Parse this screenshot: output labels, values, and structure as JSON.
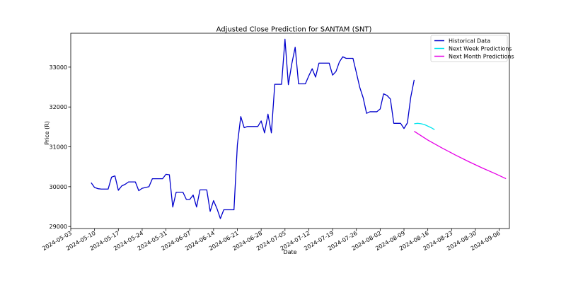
{
  "chart_data": {
    "type": "line",
    "title": "Adjusted Close Prediction for SANTAM (SNT)",
    "xlabel": "Date",
    "ylabel": "Price (R)",
    "xlim": [
      "2024-05-03",
      "2024-09-09"
    ],
    "ylim": [
      28950,
      33850
    ],
    "grid": false,
    "legend_position": "top-right",
    "x_ticks": [
      "2024-05-03",
      "2024-05-10",
      "2024-05-17",
      "2024-05-24",
      "2024-05-31",
      "2024-06-07",
      "2024-06-14",
      "2024-06-21",
      "2024-06-28",
      "2024-07-05",
      "2024-07-12",
      "2024-07-19",
      "2024-07-26",
      "2024-08-02",
      "2024-08-09",
      "2024-08-16",
      "2024-08-23",
      "2024-08-30",
      "2024-09-06"
    ],
    "y_ticks": [
      29000,
      30000,
      31000,
      32000,
      33000
    ],
    "series": [
      {
        "name": "Historical Data",
        "color": "#0000cc",
        "points": [
          [
            "2024-05-09",
            30100
          ],
          [
            "2024-05-10",
            29980
          ],
          [
            "2024-05-11",
            29950
          ],
          [
            "2024-05-12",
            29940
          ],
          [
            "2024-05-14",
            29940
          ],
          [
            "2024-05-15",
            30240
          ],
          [
            "2024-05-16",
            30270
          ],
          [
            "2024-05-17",
            29910
          ],
          [
            "2024-05-18",
            30020
          ],
          [
            "2024-05-19",
            30060
          ],
          [
            "2024-05-20",
            30120
          ],
          [
            "2024-05-22",
            30120
          ],
          [
            "2024-05-23",
            29900
          ],
          [
            "2024-05-24",
            29960
          ],
          [
            "2024-05-26",
            30000
          ],
          [
            "2024-05-27",
            30200
          ],
          [
            "2024-05-30",
            30200
          ],
          [
            "2024-05-31",
            30310
          ],
          [
            "2024-06-01",
            30300
          ],
          [
            "2024-06-02",
            29490
          ],
          [
            "2024-06-03",
            29860
          ],
          [
            "2024-06-05",
            29860
          ],
          [
            "2024-06-06",
            29680
          ],
          [
            "2024-06-07",
            29680
          ],
          [
            "2024-06-08",
            29790
          ],
          [
            "2024-06-09",
            29490
          ],
          [
            "2024-06-10",
            29920
          ],
          [
            "2024-06-12",
            29920
          ],
          [
            "2024-06-13",
            29380
          ],
          [
            "2024-06-14",
            29650
          ],
          [
            "2024-06-15",
            29450
          ],
          [
            "2024-06-16",
            29200
          ],
          [
            "2024-06-17",
            29420
          ],
          [
            "2024-06-20",
            29420
          ],
          [
            "2024-06-21",
            31050
          ],
          [
            "2024-06-22",
            31760
          ],
          [
            "2024-06-23",
            31480
          ],
          [
            "2024-06-24",
            31510
          ],
          [
            "2024-06-27",
            31510
          ],
          [
            "2024-06-28",
            31650
          ],
          [
            "2024-06-29",
            31350
          ],
          [
            "2024-06-30",
            31820
          ],
          [
            "2024-07-01",
            31350
          ],
          [
            "2024-07-02",
            32570
          ],
          [
            "2024-07-04",
            32570
          ],
          [
            "2024-07-05",
            33700
          ],
          [
            "2024-07-06",
            32560
          ],
          [
            "2024-07-07",
            33080
          ],
          [
            "2024-07-08",
            33500
          ],
          [
            "2024-07-09",
            32580
          ],
          [
            "2024-07-11",
            32580
          ],
          [
            "2024-07-12",
            32780
          ],
          [
            "2024-07-13",
            32960
          ],
          [
            "2024-07-14",
            32750
          ],
          [
            "2024-07-15",
            33100
          ],
          [
            "2024-07-18",
            33100
          ],
          [
            "2024-07-19",
            32800
          ],
          [
            "2024-07-20",
            32890
          ],
          [
            "2024-07-21",
            33130
          ],
          [
            "2024-07-22",
            33260
          ],
          [
            "2024-07-23",
            33220
          ],
          [
            "2024-07-25",
            33220
          ],
          [
            "2024-07-26",
            32860
          ],
          [
            "2024-07-27",
            32490
          ],
          [
            "2024-07-28",
            32230
          ],
          [
            "2024-07-29",
            31840
          ],
          [
            "2024-07-30",
            31880
          ],
          [
            "2024-08-01",
            31880
          ],
          [
            "2024-08-02",
            31950
          ],
          [
            "2024-08-03",
            32330
          ],
          [
            "2024-08-04",
            32290
          ],
          [
            "2024-08-05",
            32200
          ],
          [
            "2024-08-06",
            31590
          ],
          [
            "2024-08-08",
            31590
          ],
          [
            "2024-08-09",
            31460
          ],
          [
            "2024-08-10",
            31600
          ],
          [
            "2024-08-11",
            32250
          ],
          [
            "2024-08-12",
            32680
          ]
        ]
      },
      {
        "name": "Next Week Predictions",
        "color": "#00e5ee",
        "points": [
          [
            "2024-08-12",
            31580
          ],
          [
            "2024-08-13",
            31590
          ],
          [
            "2024-08-14",
            31580
          ],
          [
            "2024-08-15",
            31560
          ],
          [
            "2024-08-16",
            31520
          ],
          [
            "2024-08-17",
            31480
          ],
          [
            "2024-08-18",
            31430
          ]
        ]
      },
      {
        "name": "Next Month Predictions",
        "color": "#e600e6",
        "points": [
          [
            "2024-08-12",
            31390
          ],
          [
            "2024-08-16",
            31170
          ],
          [
            "2024-08-20",
            30980
          ],
          [
            "2024-08-24",
            30800
          ],
          [
            "2024-08-28",
            30630
          ],
          [
            "2024-09-01",
            30470
          ],
          [
            "2024-09-05",
            30320
          ],
          [
            "2024-09-08",
            30200
          ]
        ]
      }
    ]
  }
}
